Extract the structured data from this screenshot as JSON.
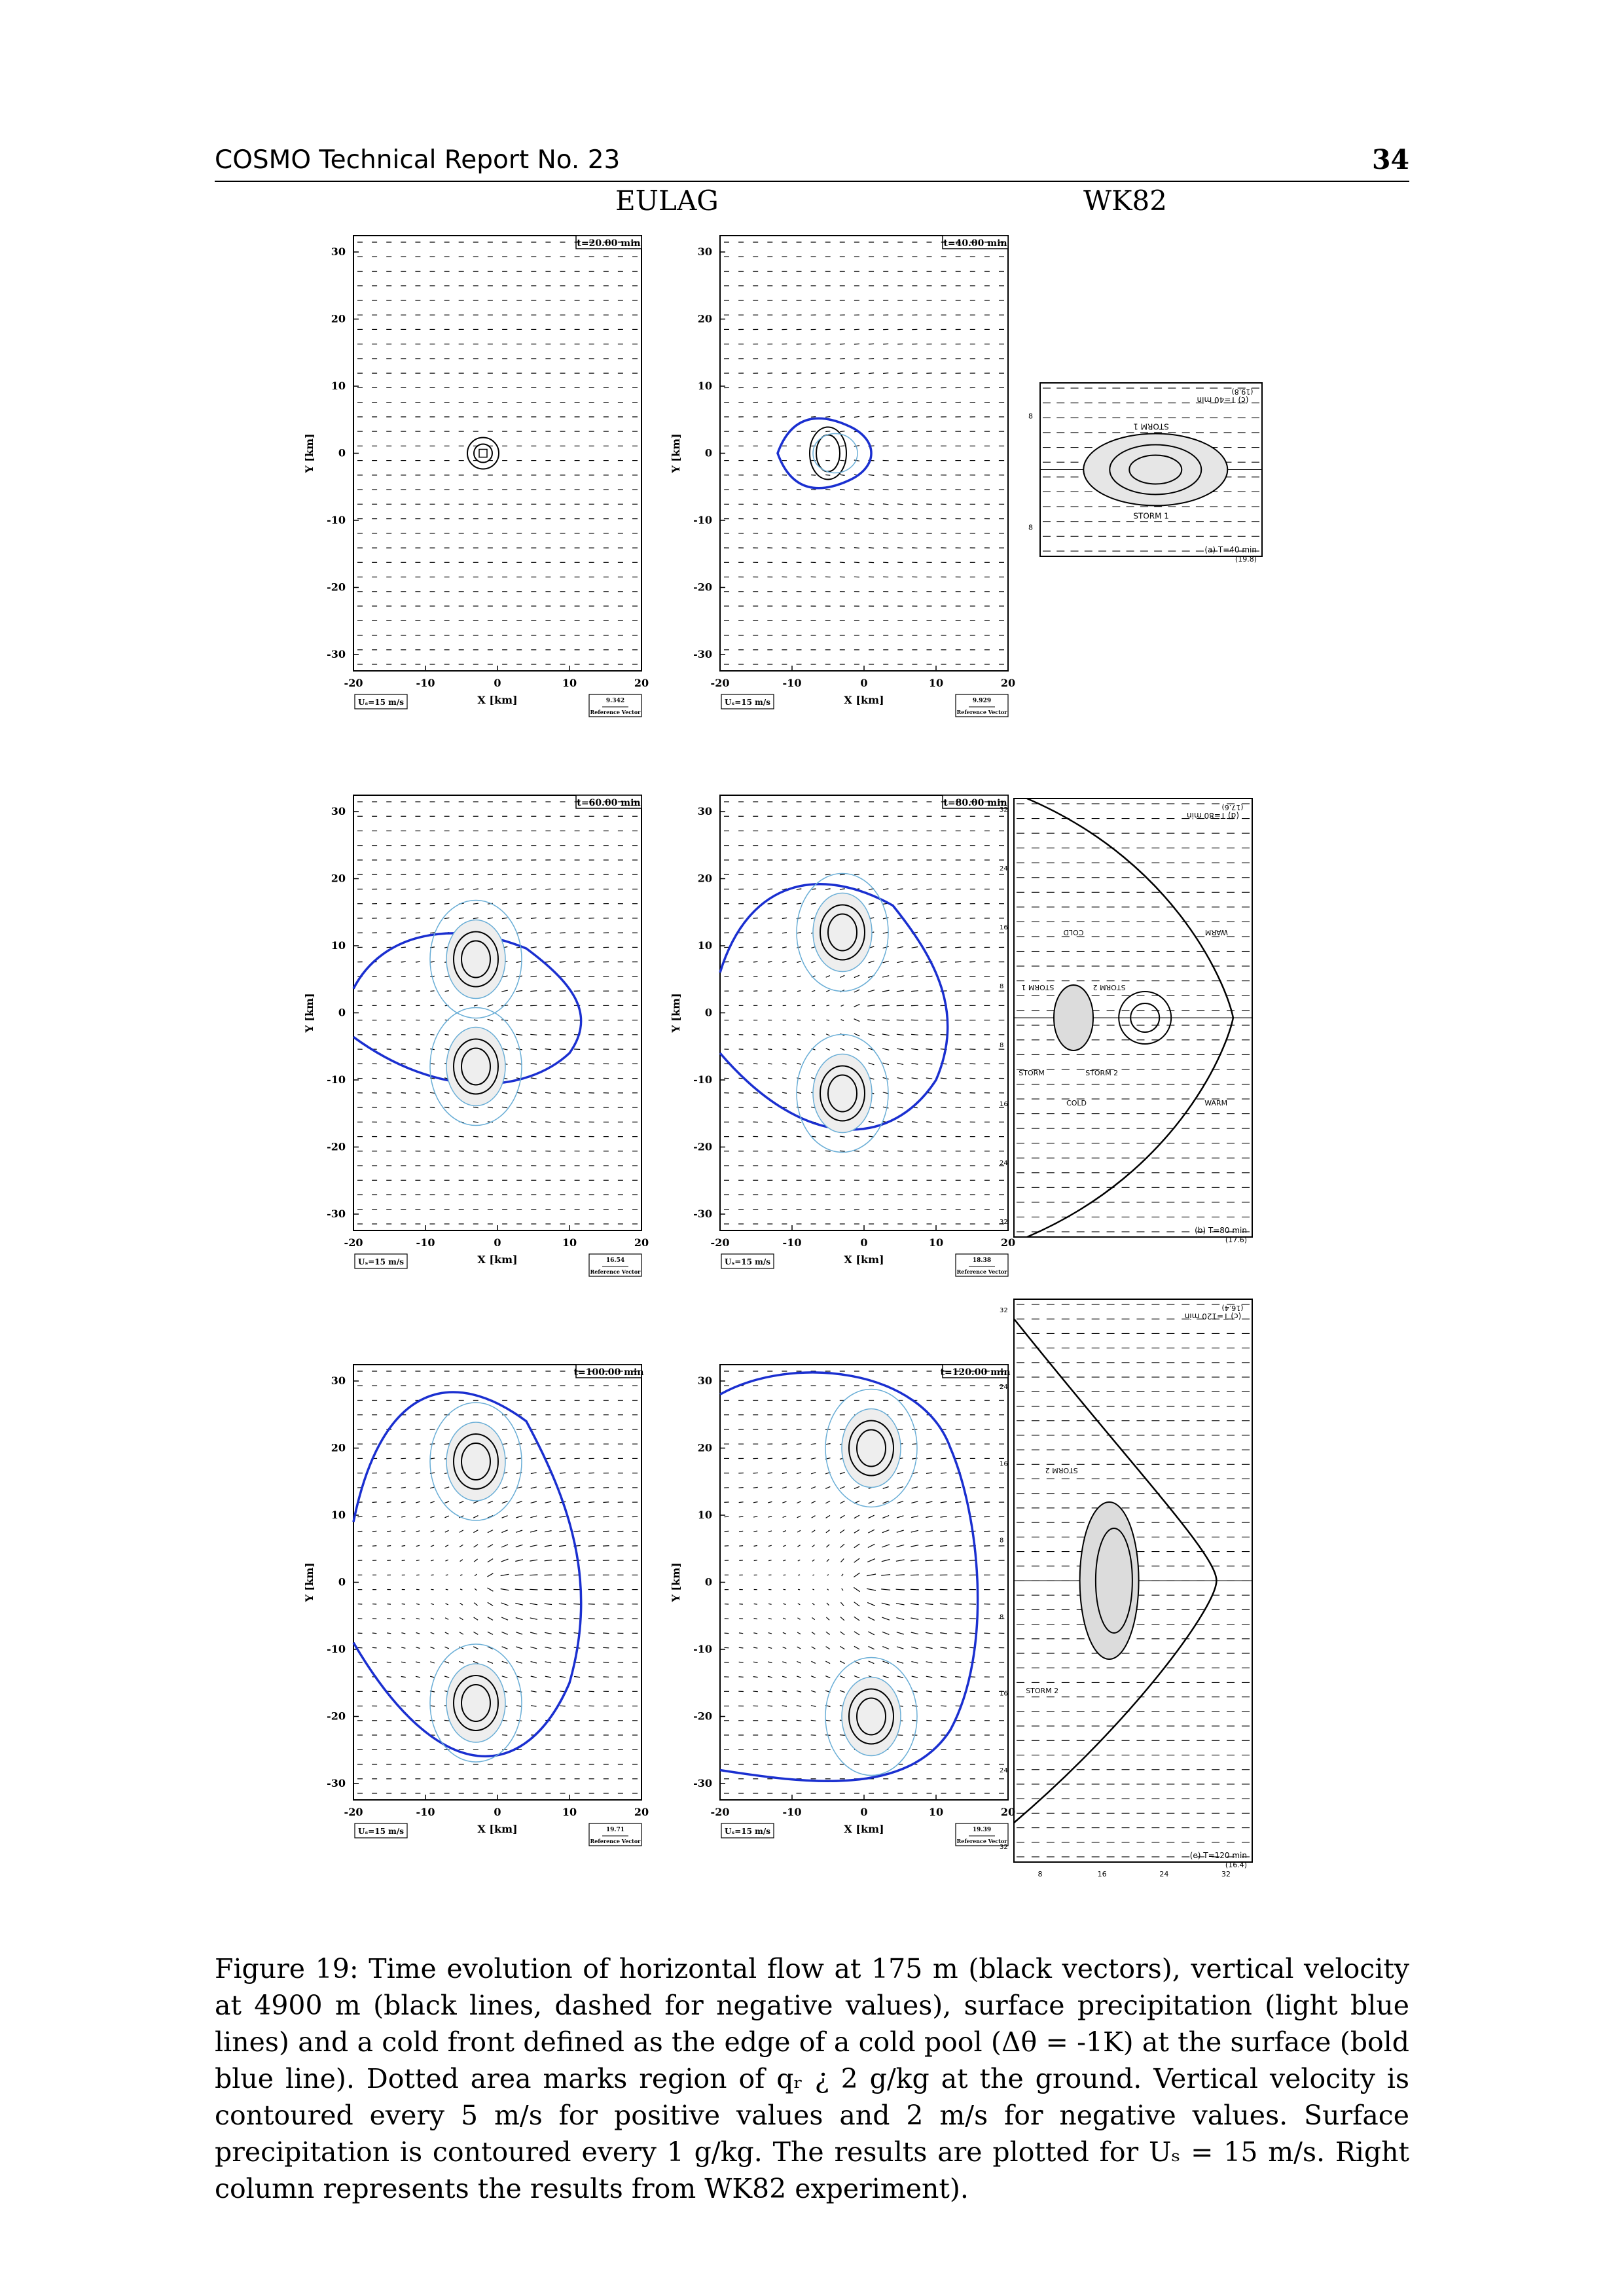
{
  "header": {
    "left": "COSMO Technical Report No. 23",
    "page_number": "34"
  },
  "column_titles": {
    "eulag": "EULAG",
    "wk82": "WK82"
  },
  "eulag_panels": [
    {
      "time": "t=20.00 min",
      "ref_value": "9.342",
      "cold_front": false
    },
    {
      "time": "t=40.00 min",
      "ref_value": "9.929",
      "cold_front": true
    },
    {
      "time": "t=60.00 min",
      "ref_value": "16.54",
      "cold_front": true
    },
    {
      "time": "t=80.00 min",
      "ref_value": "18.38",
      "cold_front": true
    },
    {
      "time": "t=100.00 min",
      "ref_value": "19.71",
      "cold_front": true
    },
    {
      "time": "t=120.00 min",
      "ref_value": "19.39",
      "cold_front": true
    }
  ],
  "axes": {
    "xlabel": "X [km]",
    "ylabel": "Y [km]",
    "x_ticks": [
      "-20",
      "-10",
      "0",
      "10",
      "20"
    ],
    "y_ticks": [
      "30",
      "20",
      "10",
      "0",
      "-10",
      "-20",
      "-30"
    ],
    "us_label": "Uₛ=15 m/s",
    "ref_caption": "Reference Vector"
  },
  "wk82_panels": [
    {
      "top_label": "(c) T=40 min",
      "top_sub": "(19.8)",
      "storm_top": "STORM 1",
      "bottom_label": "(a) T=40 min",
      "bottom_sub": "(19.8)",
      "storm_bottom": "STORM 1",
      "y_labels": [
        "8",
        "8"
      ]
    },
    {
      "top_label": "(d) T=80 min",
      "top_sub": "(17.6)",
      "bottom_label": "(b) T=80 min",
      "bottom_sub": "(17.6)",
      "texts": [
        "COLD",
        "WARM",
        "STORM 1",
        "STORM 2",
        "STORM",
        "STORM 2",
        "COLD",
        "WARM"
      ],
      "y_labels": [
        "32",
        "24",
        "16",
        "8",
        "8",
        "16",
        "24",
        "32"
      ]
    },
    {
      "top_label": "(c) T=120 min",
      "top_sub": "(16.4)",
      "bottom_label": "(e) T=120 min",
      "bottom_sub": "(16.4)",
      "texts": [
        "STORM 2",
        "STORM 2"
      ],
      "y_labels": [
        "32",
        "24",
        "16",
        "8",
        "8",
        "16",
        "24",
        "32"
      ],
      "x_labels": [
        "8",
        "16",
        "24",
        "32"
      ]
    }
  ],
  "caption": {
    "p1": "Figure 19: Time evolution of horizontal flow at 175 m (black vectors), vertical velocity at 4900 m (black lines, dashed for negative values), surface precipitation (light blue lines) and a cold front defined as the edge of a cold pool (Δθ = -1K) at the surface (bold blue line). Dotted area marks region of qᵣ ¿ 2 g/kg at the ground. Vertical velocity is contoured every 5 m/s for positive values and 2 m/s for negative values. Surface precipitation is contoured every 1 g/kg. The results are plotted for Uₛ = 15 m/s. Right column represents the results from WK82 experiment)."
  }
}
